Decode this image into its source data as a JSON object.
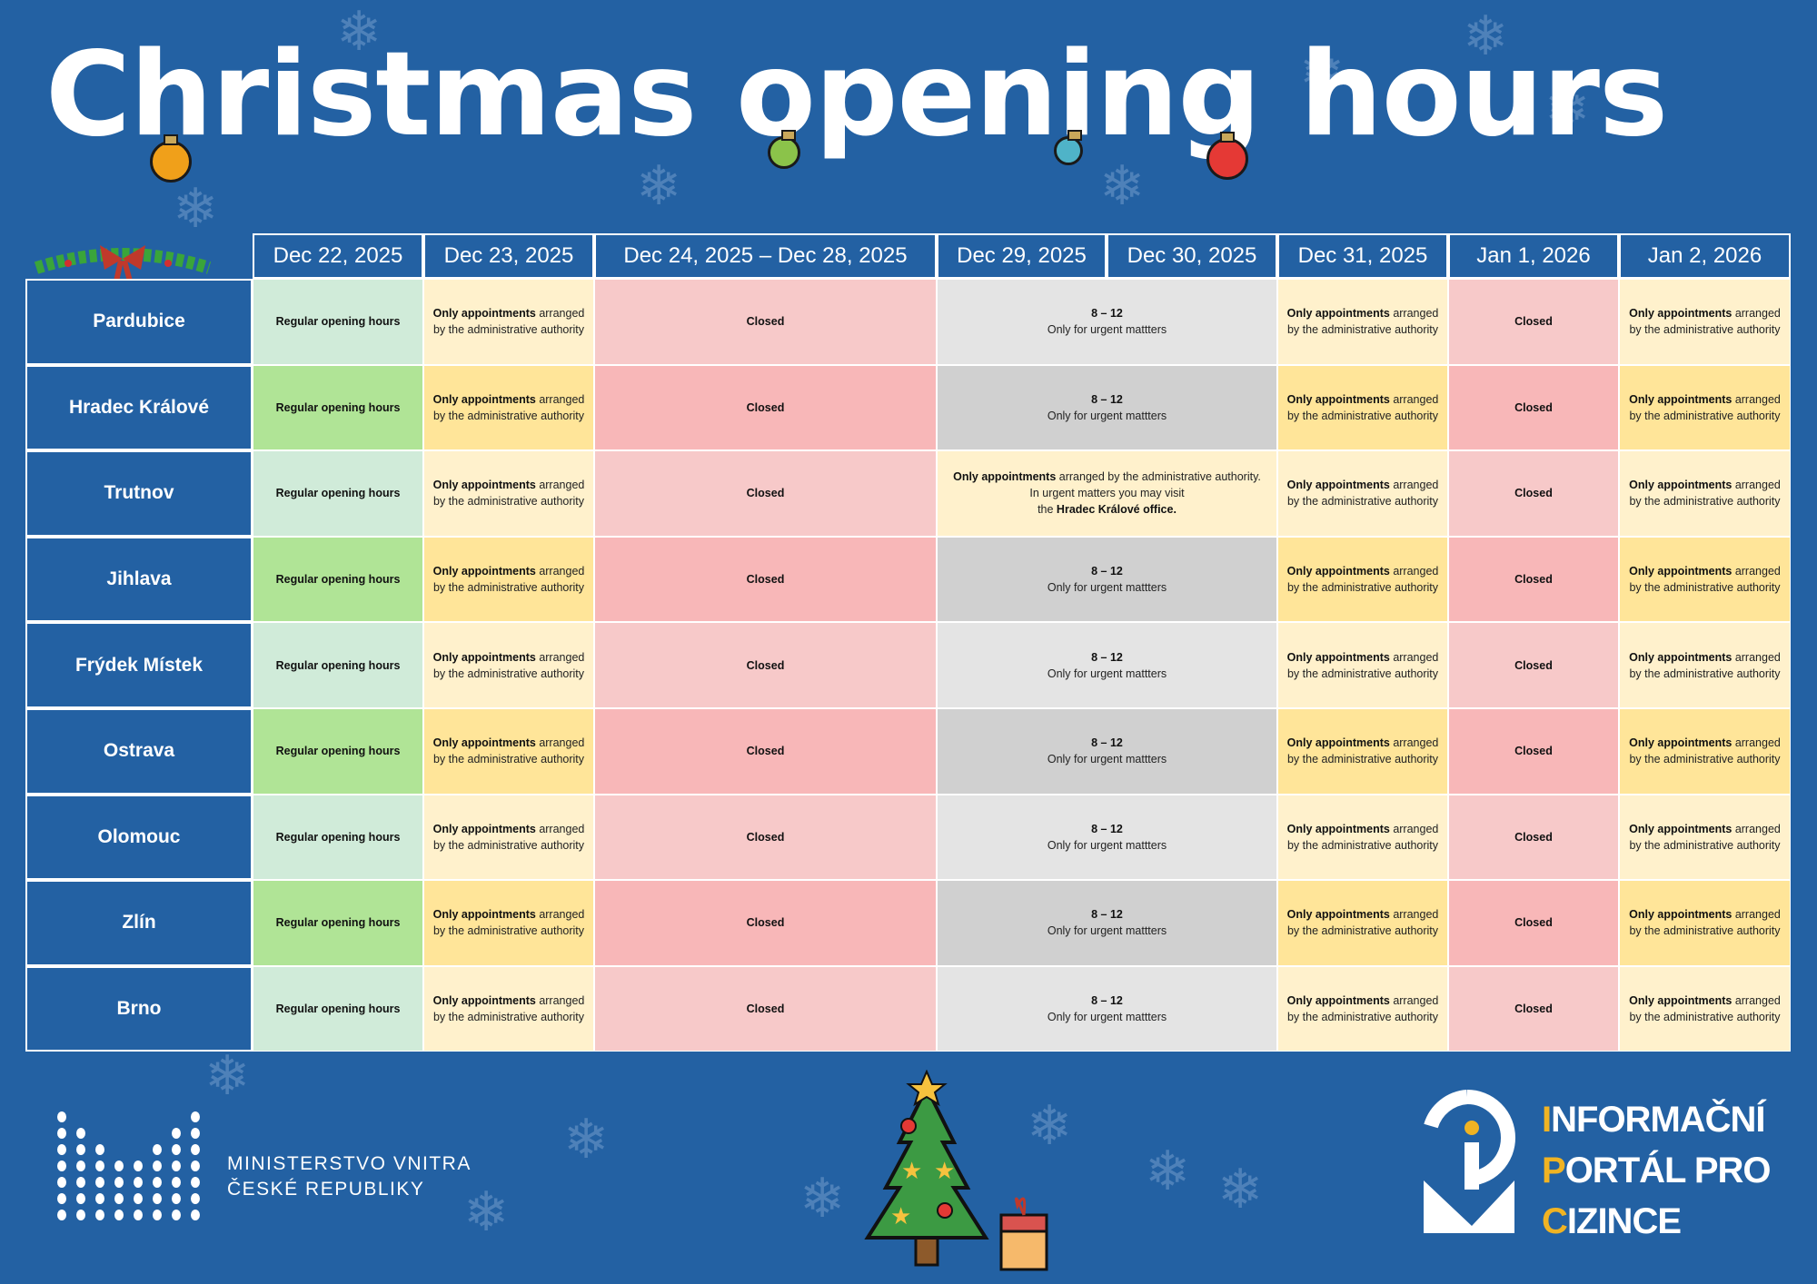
{
  "title": "Christmas opening hours",
  "colors": {
    "background": "#2361a3",
    "regular_light": "#d0ebd9",
    "regular_dark": "#b0e496",
    "appt_light": "#fff1cc",
    "appt_dark": "#ffe599",
    "closed_light": "#f7c9c9",
    "closed_dark": "#f8b7b8",
    "urgent_light": "#e4e4e4",
    "urgent_dark": "#d0d0d0"
  },
  "headers": [
    "Dec 22, 2025",
    "Dec 23, 2025",
    "Dec 24, 2025 – Dec 28, 2025",
    "Dec 29, 2025",
    "Dec 30, 2025",
    "Dec 31, 2025",
    "Jan 1, 2026",
    "Jan 2, 2026"
  ],
  "texts": {
    "regular": "Regular opening hours",
    "appt_bold": "Only appointments",
    "appt_rest1": " arranged",
    "appt_rest2": "by the administrative authority",
    "closed": "Closed",
    "urgent_hours": "8 – 12",
    "urgent_note": "Only for urgent mattters",
    "trutnov_bold": "Only appointments",
    "trutnov_rest": " arranged by the administrative authority.",
    "trutnov_line2": "In urgent matters you may visit",
    "trutnov_line3_pre": "the ",
    "trutnov_line3_bold": "Hradec Králové office",
    "trutnov_line3_post": "."
  },
  "rows": [
    {
      "city": "Pardubice",
      "special": false
    },
    {
      "city": "Hradec Králové",
      "special": false
    },
    {
      "city": "Trutnov",
      "special": true
    },
    {
      "city": "Jihlava",
      "special": false
    },
    {
      "city": "Frýdek Místek",
      "special": false
    },
    {
      "city": "Ostrava",
      "special": false
    },
    {
      "city": "Olomouc",
      "special": false
    },
    {
      "city": "Zlín",
      "special": false
    },
    {
      "city": "Brno",
      "special": false
    }
  ],
  "footer": {
    "ministry_line1": "MINISTERSTVO VNITRA",
    "ministry_line2": "ČESKÉ REPUBLIKY",
    "portal": [
      {
        "first": "I",
        "rest": "NFORMAČNÍ"
      },
      {
        "first": "P",
        "rest": "ORTÁL PRO"
      },
      {
        "first": "C",
        "rest": "IZINCE"
      }
    ]
  }
}
